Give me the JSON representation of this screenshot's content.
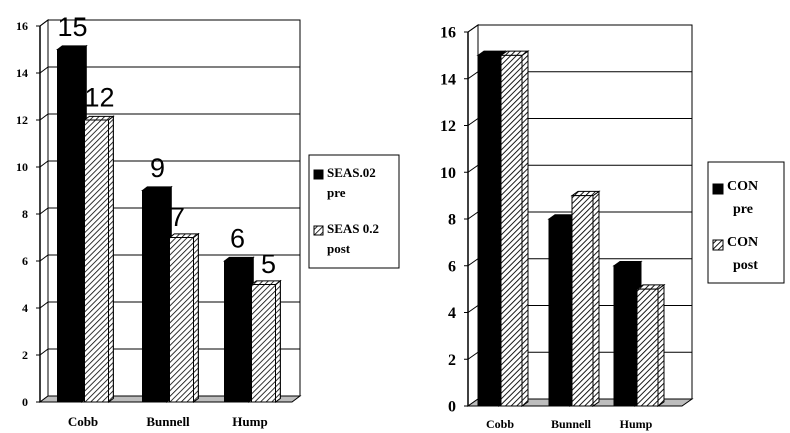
{
  "chart_data": [
    {
      "type": "bar",
      "categories": [
        "Cobb",
        "Bunnell",
        "Hump"
      ],
      "series": [
        {
          "name": "SEAS.02 pre",
          "values": [
            15,
            9,
            6
          ],
          "fill": "solid",
          "color": "#000000"
        },
        {
          "name": "SEAS 0.2 post",
          "values": [
            12,
            7,
            5
          ],
          "fill": "hatch",
          "color": "#000000"
        }
      ],
      "data_labels": [
        [
          15,
          9,
          6
        ],
        [
          12,
          7,
          5
        ]
      ],
      "legend": {
        "placement": "right",
        "entries": [
          {
            "lines": [
              "SEAS.02",
              "pre"
            ],
            "fill": "solid"
          },
          {
            "lines": [
              "SEAS 0.2",
              "post"
            ],
            "fill": "hatch"
          }
        ]
      },
      "ylim": [
        0,
        16
      ],
      "yticks": [
        0,
        2,
        4,
        6,
        8,
        10,
        12,
        14,
        16
      ],
      "grid": true,
      "title": "",
      "xlabel": "",
      "ylabel": ""
    },
    {
      "type": "bar",
      "categories": [
        "Cobb",
        "Bunnell",
        "Hump"
      ],
      "series": [
        {
          "name": "CON pre",
          "values": [
            15,
            8,
            6
          ],
          "fill": "solid",
          "color": "#000000"
        },
        {
          "name": "CON post",
          "values": [
            15,
            9,
            5
          ],
          "fill": "hatch",
          "color": "#000000"
        }
      ],
      "legend": {
        "placement": "right",
        "entries": [
          {
            "lines": [
              "CON",
              "pre"
            ],
            "fill": "solid"
          },
          {
            "lines": [
              "CON",
              "post"
            ],
            "fill": "hatch"
          }
        ]
      },
      "ylim": [
        0,
        16
      ],
      "yticks": [
        0,
        2,
        4,
        6,
        8,
        10,
        12,
        14,
        16
      ],
      "grid": true,
      "title": "",
      "xlabel": "",
      "ylabel": ""
    }
  ]
}
